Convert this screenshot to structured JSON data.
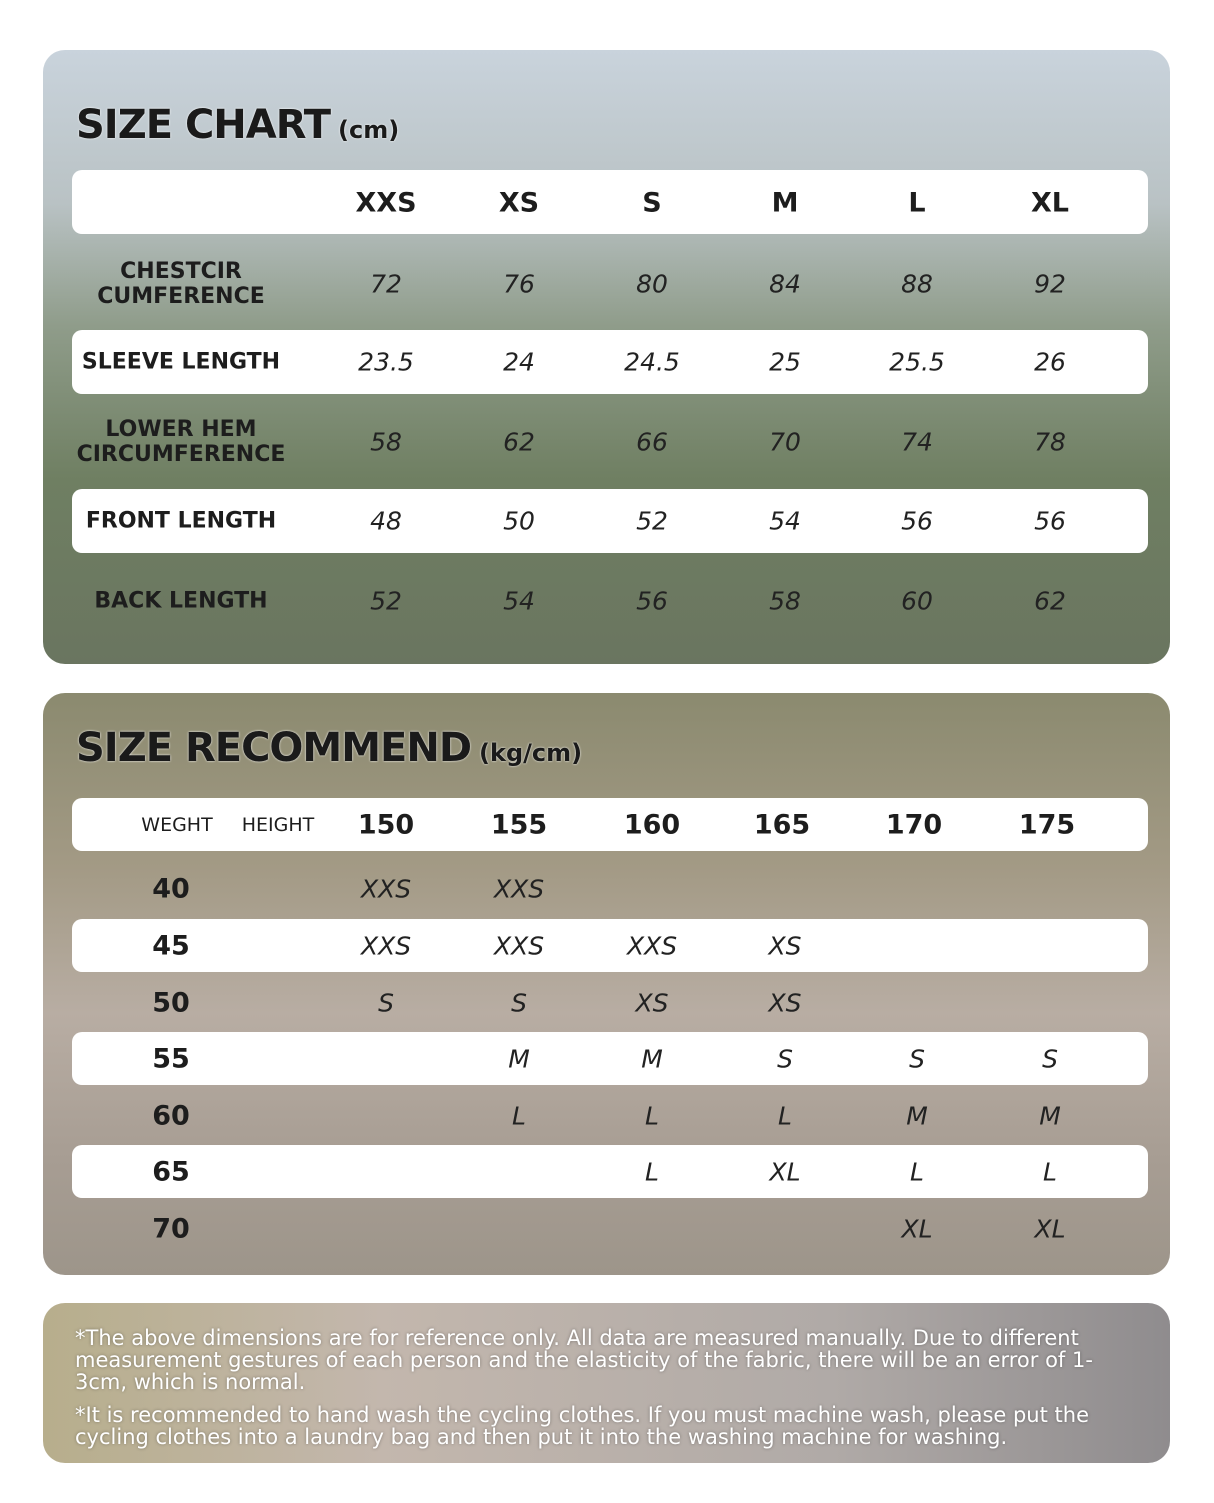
{
  "size_chart": {
    "title": "SIZE CHART",
    "unit": "(cm)",
    "sizes": [
      "XXS",
      "XS",
      "S",
      "M",
      "L",
      "XL"
    ],
    "rows": [
      {
        "label": "CHESTCIR CUMFERENCE",
        "values": [
          "72",
          "76",
          "80",
          "84",
          "88",
          "92"
        ]
      },
      {
        "label": "SLEEVE LENGTH",
        "values": [
          "23.5",
          "24",
          "24.5",
          "25",
          "25.5",
          "26"
        ]
      },
      {
        "label": "LOWER HEM CIRCUMFERENCE",
        "values": [
          "58",
          "62",
          "66",
          "70",
          "74",
          "78"
        ]
      },
      {
        "label": "FRONT LENGTH",
        "values": [
          "48",
          "50",
          "52",
          "54",
          "56",
          "56"
        ]
      },
      {
        "label": "BACK LENGTH",
        "values": [
          "52",
          "54",
          "56",
          "58",
          "60",
          "62"
        ]
      }
    ]
  },
  "size_recommend": {
    "title": "SIZE RECOMMEND",
    "unit": "(kg/cm)",
    "weight_label": "WEGHT",
    "height_label": "HEIGHT",
    "heights": [
      "150",
      "155",
      "160",
      "165",
      "170",
      "175"
    ],
    "rows": [
      {
        "weight": "40",
        "values": [
          "XXS",
          "XXS",
          "",
          "",
          "",
          ""
        ]
      },
      {
        "weight": "45",
        "values": [
          "XXS",
          "XXS",
          "XXS",
          "XS",
          "",
          ""
        ]
      },
      {
        "weight": "50",
        "values": [
          "S",
          "S",
          "XS",
          "XS",
          "",
          ""
        ]
      },
      {
        "weight": "55",
        "values": [
          "",
          "M",
          "M",
          "S",
          "S",
          "S"
        ]
      },
      {
        "weight": "60",
        "values": [
          "",
          "L",
          "L",
          "L",
          "M",
          "M"
        ]
      },
      {
        "weight": "65",
        "values": [
          "",
          "",
          "L",
          "XL",
          "L",
          "L"
        ]
      },
      {
        "weight": "70",
        "values": [
          "",
          "",
          "",
          "",
          "XL",
          "XL"
        ]
      }
    ]
  },
  "notes": [
    "*The above dimensions are for reference only. All data are measured manually. Due to different measurement gestures of each person and the elasticity of the fabric, there will be an error of 1-3cm, which is normal.",
    "*It is recommended to hand wash the cycling clothes. If you must machine wash, please put the cycling clothes into a laundry bag and then put it into the washing machine for washing."
  ]
}
